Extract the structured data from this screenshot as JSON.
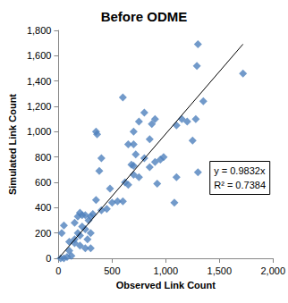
{
  "chart_data": {
    "type": "scatter",
    "title": "Before ODME",
    "x_label": "Observed Link Count",
    "y_label": "Simulated Link Count",
    "x": [
      1720,
      1300,
      1290,
      1350,
      1200,
      1280,
      1150,
      1250,
      1100,
      1100,
      1300,
      1080,
      900,
      870,
      800,
      850,
      900,
      950,
      980,
      920,
      800,
      850,
      750,
      700,
      700,
      650,
      720,
      680,
      700,
      600,
      620,
      650,
      700,
      750,
      600,
      550,
      500,
      480,
      450,
      400,
      350,
      360,
      380,
      350,
      400,
      300,
      320,
      250,
      280,
      200,
      220,
      180,
      150,
      250,
      300,
      270,
      200,
      150,
      100,
      200,
      250,
      300,
      100,
      120,
      80,
      50,
      20,
      50,
      30,
      150,
      220,
      180
    ],
    "values": [
      1460,
      1690,
      1520,
      1240,
      1080,
      1100,
      1100,
      930,
      1050,
      640,
      680,
      440,
      1100,
      1060,
      1150,
      940,
      760,
      780,
      800,
      590,
      790,
      720,
      1080,
      1000,
      900,
      900,
      820,
      740,
      730,
      1270,
      600,
      580,
      660,
      640,
      450,
      450,
      440,
      550,
      390,
      790,
      1000,
      980,
      690,
      460,
      380,
      330,
      350,
      340,
      300,
      360,
      340,
      330,
      280,
      230,
      200,
      150,
      180,
      150,
      130,
      100,
      80,
      80,
      60,
      20,
      10,
      0,
      0,
      260,
      200,
      120,
      250,
      200
    ],
    "color": "#4f81bd",
    "marker": "diamond",
    "trendline": {
      "slope": 0.9832,
      "color": "#000000",
      "line_style": "solid"
    },
    "annotations": [
      "y = 0.9832x",
      "R² = 0.7384"
    ],
    "xlim": [
      0,
      2000
    ],
    "xticks": [
      0,
      500,
      1000,
      1500,
      2000
    ],
    "ylim": [
      0,
      1800
    ],
    "yticks": [
      0,
      200,
      400,
      600,
      800,
      1000,
      1200,
      1400,
      1600,
      1800
    ],
    "grid": false
  }
}
